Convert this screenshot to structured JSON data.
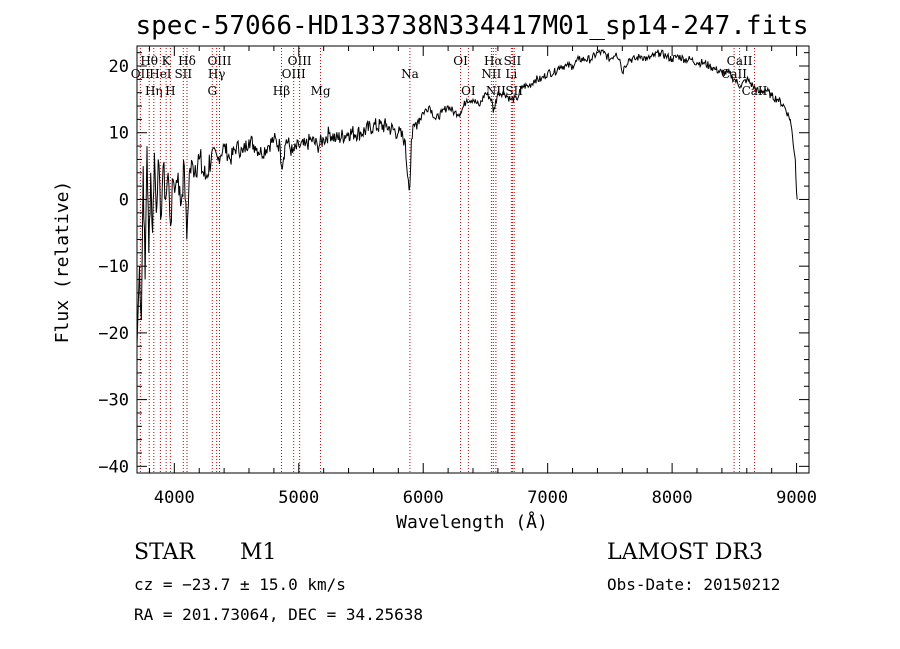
{
  "chart_data": {
    "type": "line",
    "title": "spec-57066-HD133738N334417M01_sp14-247.fits",
    "xlabel": "Wavelength (Å)",
    "ylabel": "Flux (relative)",
    "xlim": [
      3700,
      9100
    ],
    "ylim": [
      -41,
      23
    ],
    "xticks": [
      4000,
      5000,
      6000,
      7000,
      8000,
      9000
    ],
    "yticks": [
      -40,
      -30,
      -20,
      -10,
      0,
      10,
      20
    ],
    "series": [
      {
        "name": "flux",
        "x": [
          3700,
          3720,
          3735,
          3750,
          3765,
          3780,
          3795,
          3810,
          3825,
          3840,
          3855,
          3870,
          3890,
          3910,
          3930,
          3950,
          3970,
          3990,
          4010,
          4030,
          4050,
          4080,
          4100,
          4120,
          4150,
          4200,
          4250,
          4300,
          4350,
          4400,
          4450,
          4500,
          4550,
          4600,
          4650,
          4700,
          4750,
          4800,
          4850,
          4861,
          4900,
          4950,
          5000,
          5050,
          5100,
          5150,
          5200,
          5250,
          5300,
          5400,
          5500,
          5600,
          5700,
          5800,
          5850,
          5880,
          5893,
          5905,
          5930,
          5960,
          6000,
          6050,
          6100,
          6150,
          6200,
          6250,
          6300,
          6350,
          6400,
          6450,
          6500,
          6550,
          6563,
          6600,
          6650,
          6700,
          6750,
          6800,
          6850,
          6900,
          6950,
          7000,
          7050,
          7100,
          7150,
          7200,
          7250,
          7300,
          7350,
          7400,
          7450,
          7500,
          7550,
          7580,
          7600,
          7620,
          7650,
          7700,
          7750,
          7800,
          7850,
          7900,
          7950,
          8000,
          8050,
          8100,
          8150,
          8200,
          8250,
          8300,
          8350,
          8400,
          8450,
          8500,
          8550,
          8600,
          8650,
          8700,
          8750,
          8800,
          8850,
          8900,
          8950,
          8990,
          9000,
          9005
        ],
        "values": [
          -22,
          -10,
          -18,
          5,
          -12,
          8,
          -8,
          4,
          -5,
          7,
          -2,
          6,
          -3,
          5,
          0,
          4,
          -4,
          3,
          2,
          4,
          -1,
          5,
          -6,
          4,
          5,
          6,
          3,
          7,
          6,
          8,
          6,
          8,
          7,
          9,
          8,
          7,
          8,
          9,
          8,
          5,
          9,
          7,
          8,
          8,
          9,
          8,
          9,
          10,
          9,
          10,
          10,
          11,
          11,
          10,
          9,
          3,
          2,
          9,
          11,
          12,
          13,
          14,
          12,
          13,
          14,
          13,
          13,
          15,
          15,
          14,
          16,
          15,
          13,
          16,
          16,
          15,
          15,
          17,
          17,
          18,
          18,
          19,
          19,
          20,
          20,
          20,
          21,
          21,
          21,
          22,
          22,
          21,
          22,
          21,
          19,
          20,
          21,
          21,
          21.5,
          21,
          21.5,
          22,
          21.5,
          21,
          21.5,
          21,
          21,
          20.5,
          20.5,
          20,
          19.5,
          19,
          19,
          18,
          17,
          18,
          17,
          16,
          16.5,
          15.5,
          15,
          14,
          12,
          6,
          1,
          0
        ]
      }
    ],
    "line_markers": [
      {
        "name": "Hθ",
        "x": 3798,
        "label_row": 1
      },
      {
        "name": "OII",
        "x": 3727,
        "label_row": 2
      },
      {
        "name": "Hη",
        "x": 3835,
        "label_row": 3
      },
      {
        "name": "HeI",
        "x": 3888,
        "label_row": 2
      },
      {
        "name": "K",
        "x": 3934,
        "label_row": 1
      },
      {
        "name": "H",
        "x": 3968,
        "label_row": 3
      },
      {
        "name": "SII",
        "x": 4072,
        "label_row": 2
      },
      {
        "name": "Hδ",
        "x": 4102,
        "label_row": 1
      },
      {
        "name": "OIII",
        "x": 4363,
        "label_row": 1
      },
      {
        "name": "Hγ",
        "x": 4340,
        "label_row": 2
      },
      {
        "name": "G",
        "x": 4305,
        "label_row": 3
      },
      {
        "name": "Hβ",
        "x": 4861,
        "label_row": 3
      },
      {
        "name": "OIII",
        "x": 4959,
        "label_row": 2
      },
      {
        "name": "OIII",
        "x": 5007,
        "label_row": 1
      },
      {
        "name": "Mg",
        "x": 5175,
        "label_row": 3
      },
      {
        "name": "Na",
        "x": 5893,
        "label_row": 2
      },
      {
        "name": "OI",
        "x": 6300,
        "label_row": 1
      },
      {
        "name": "OI",
        "x": 6363,
        "label_row": 3
      },
      {
        "name": "Hα",
        "x": 6563,
        "label_row": 1
      },
      {
        "name": "NII",
        "x": 6548,
        "label_row": 2
      },
      {
        "name": "NII",
        "x": 6584,
        "label_row": 3
      },
      {
        "name": "SII",
        "x": 6717,
        "label_row": 1
      },
      {
        "name": "Li",
        "x": 6708,
        "label_row": 2
      },
      {
        "name": "SII",
        "x": 6731,
        "label_row": 3
      },
      {
        "name": "CaII",
        "x": 8542,
        "label_row": 1
      },
      {
        "name": "CaII",
        "x": 8498,
        "label_row": 2
      },
      {
        "name": "CaII",
        "x": 8662,
        "label_row": 3
      }
    ]
  },
  "info": {
    "class": "STAR",
    "subclass": "M1",
    "survey": "LAMOST DR3",
    "cz": "cz = −23.7 ± 15.0 km/s",
    "obs_date": "Obs-Date: 20150212",
    "radec": "RA = 201.73064, DEC =  34.25638"
  },
  "colors": {
    "marker": "#cc0000",
    "line": "#000000"
  }
}
